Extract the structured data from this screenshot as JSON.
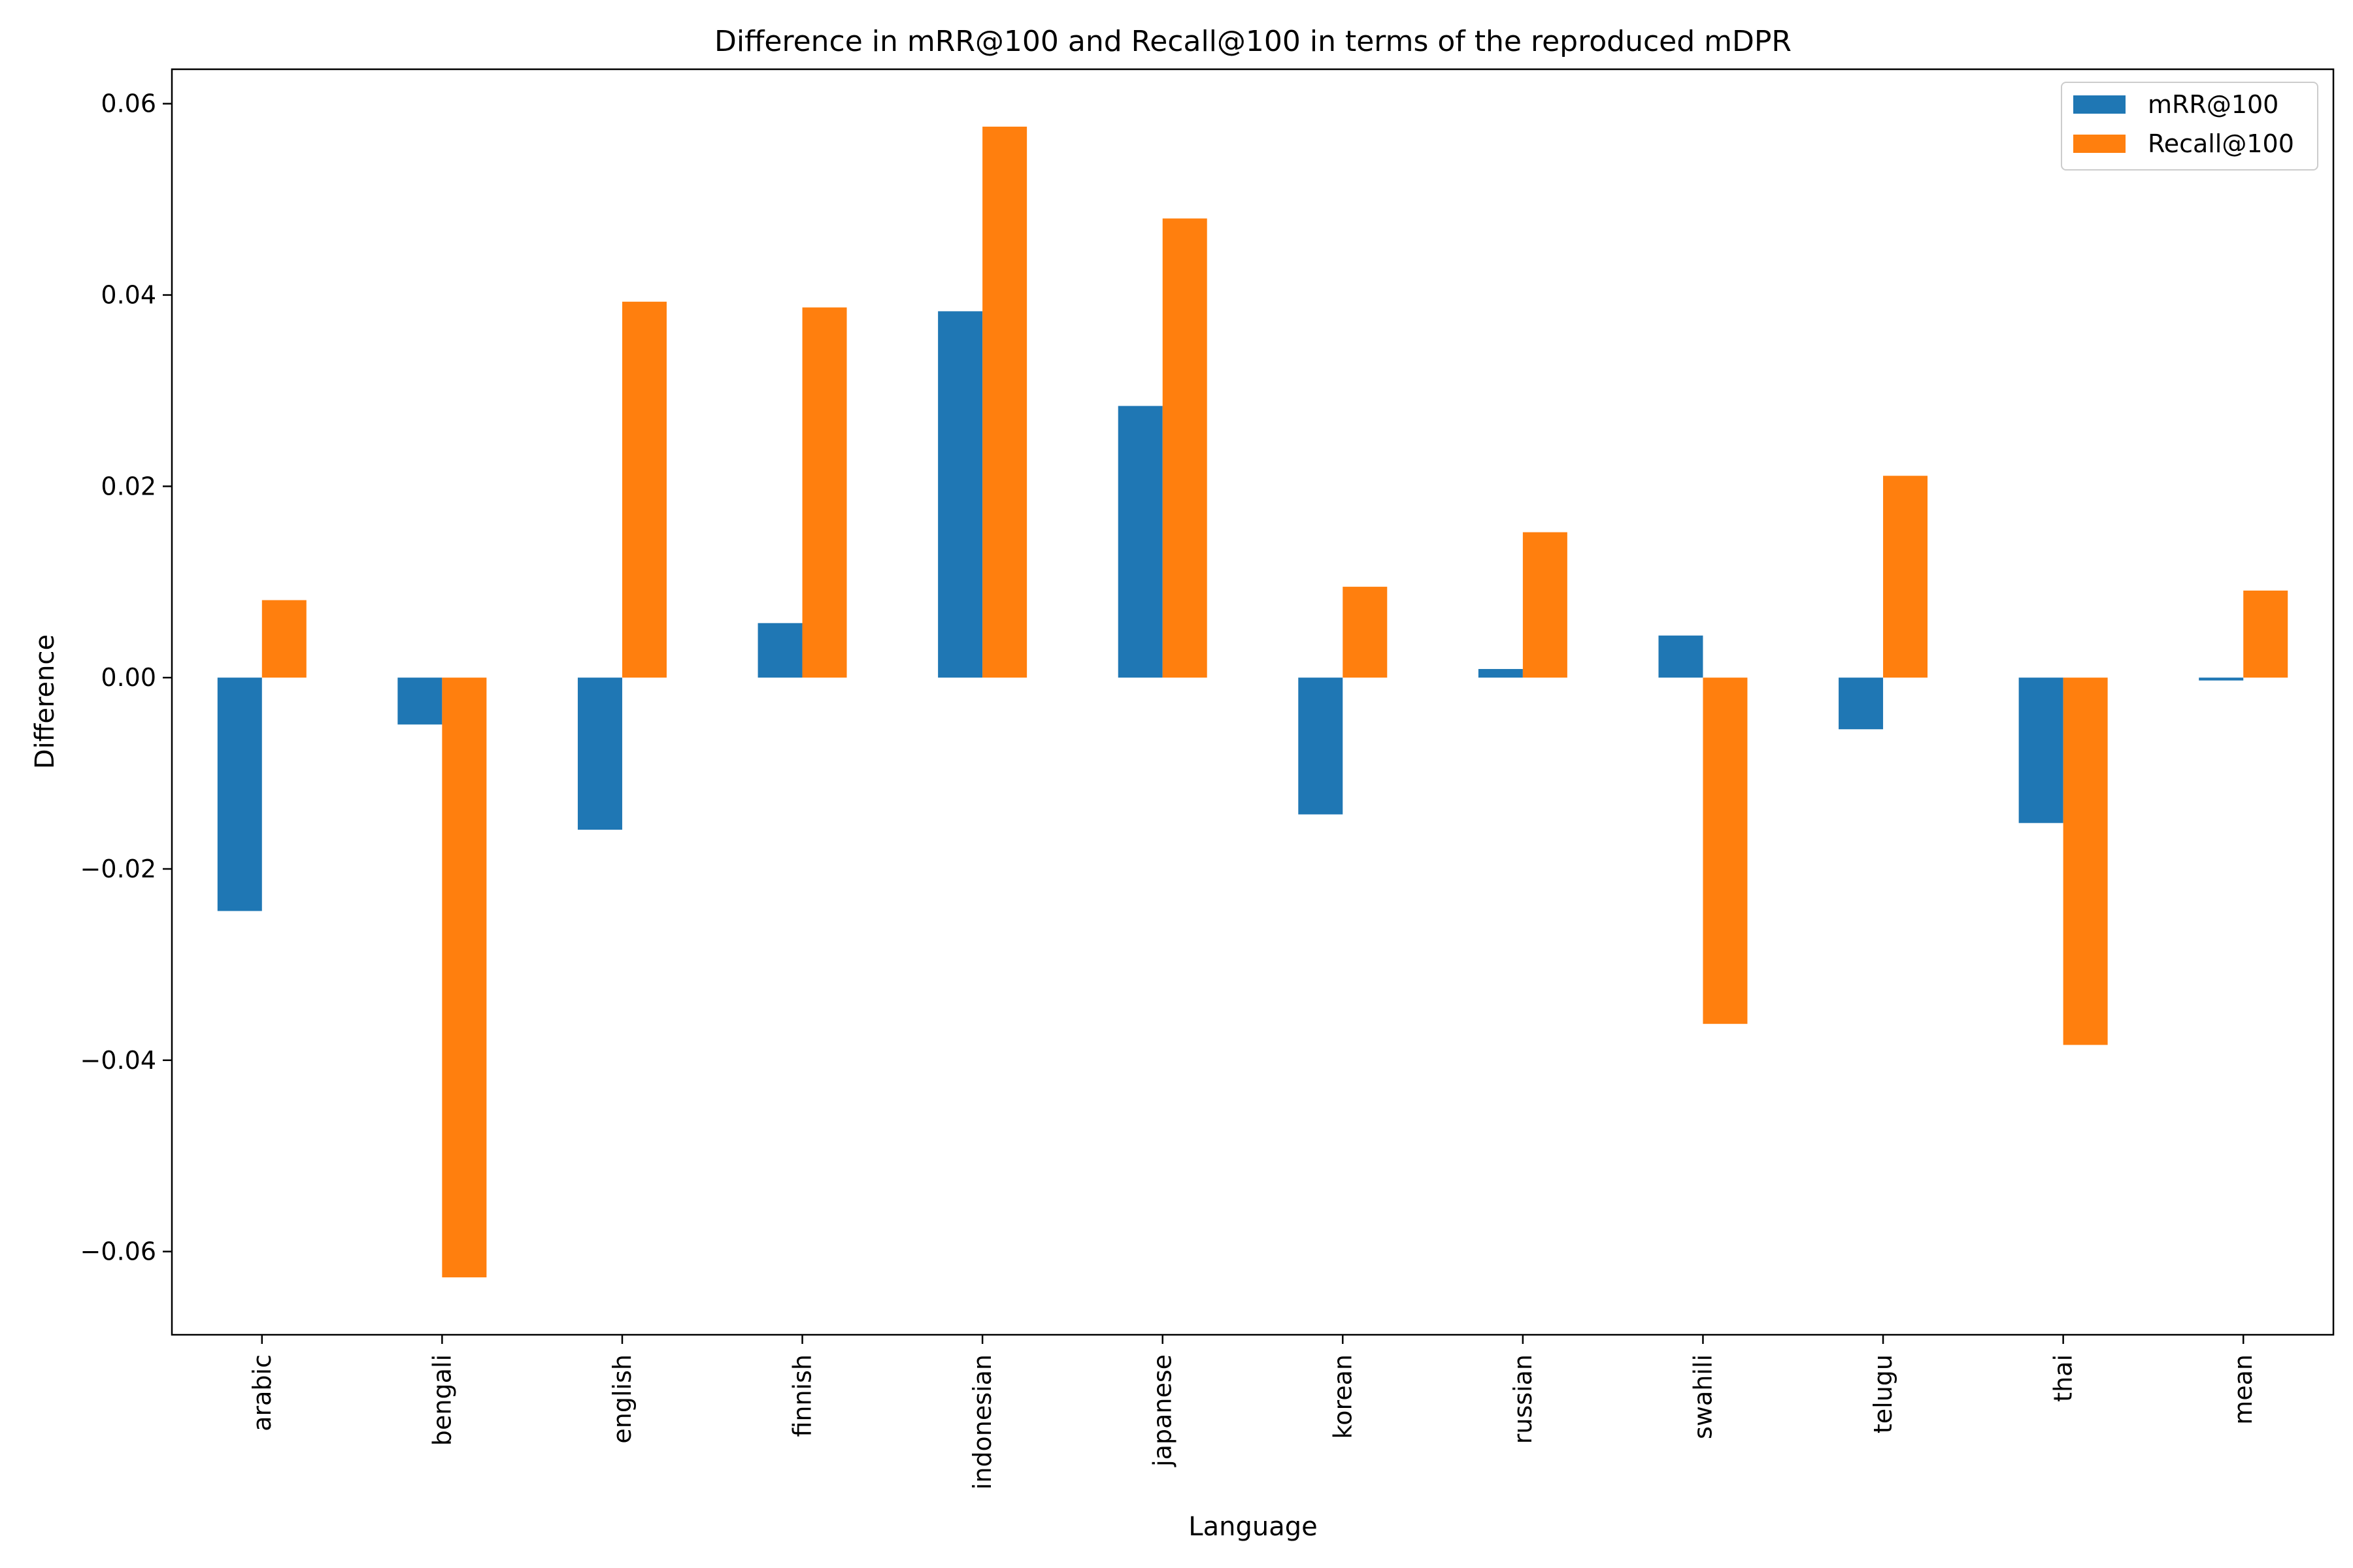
{
  "chart_data": {
    "type": "bar",
    "title": "Difference in mRR@100 and Recall@100 in terms of the reproduced mDPR",
    "xlabel": "Language",
    "ylabel": "Difference",
    "categories": [
      "arabic",
      "bengali",
      "english",
      "finnish",
      "indonesian",
      "japanese",
      "korean",
      "russian",
      "swahili",
      "telugu",
      "thai",
      "mean"
    ],
    "series": [
      {
        "name": "mRR@100",
        "color": "#1f77b4",
        "values": [
          -0.0244,
          -0.0049,
          -0.0159,
          0.0057,
          0.0383,
          0.0284,
          -0.0143,
          0.0009,
          0.0044,
          -0.0054,
          -0.0152,
          -0.0003
        ]
      },
      {
        "name": "Recall@100",
        "color": "#ff7f0e",
        "values": [
          0.0081,
          -0.0627,
          0.0393,
          0.0387,
          0.0576,
          0.048,
          0.0095,
          0.0152,
          -0.0362,
          0.0211,
          -0.0384,
          0.0091
        ]
      }
    ],
    "ylim": [
      -0.0687,
      0.0636
    ],
    "yticks": [
      -0.06,
      -0.04,
      -0.02,
      0.0,
      0.02,
      0.04,
      0.06
    ],
    "ytick_labels": [
      "−0.06",
      "−0.04",
      "−0.02",
      "0.00",
      "0.02",
      "0.04",
      "0.06"
    ],
    "legend_position": "top-right",
    "grid": false
  }
}
